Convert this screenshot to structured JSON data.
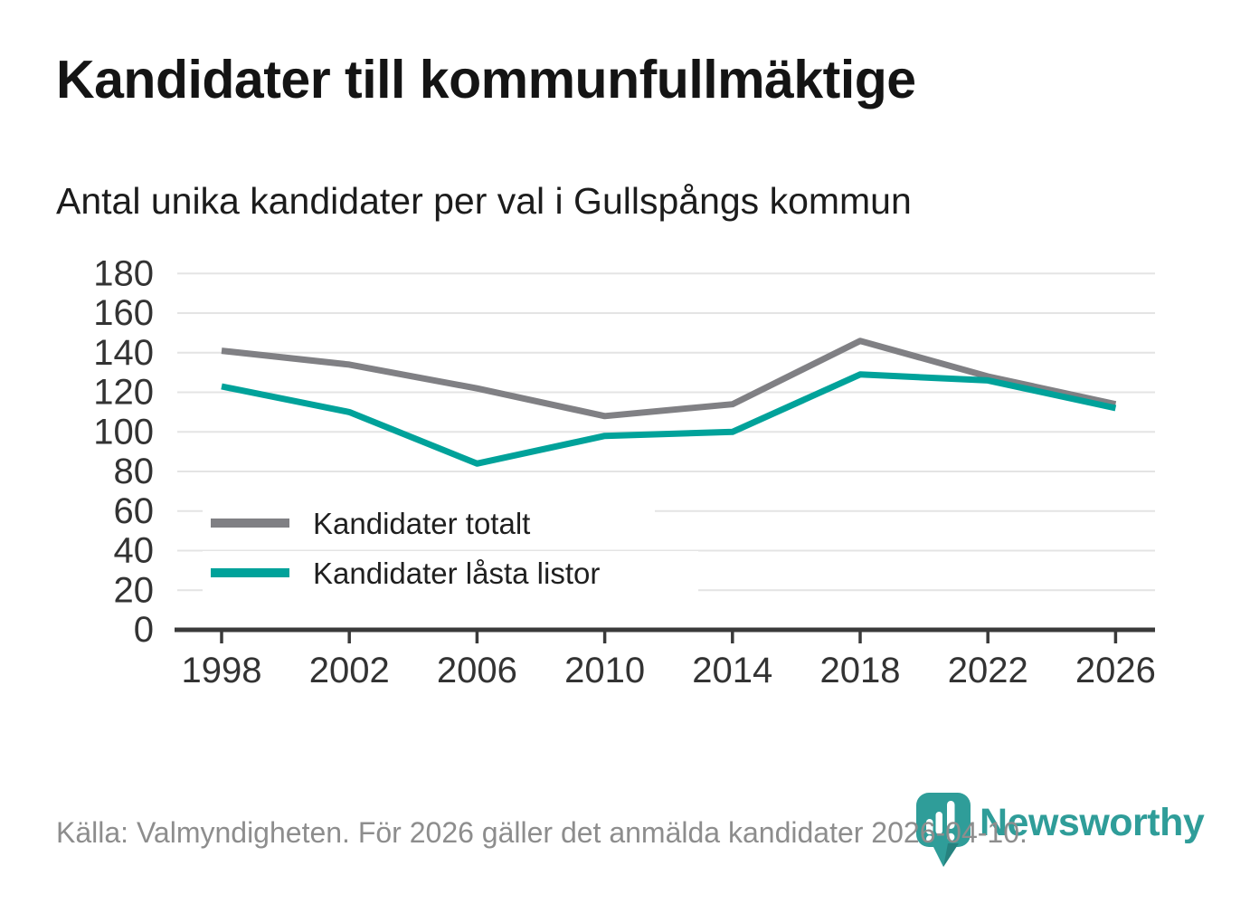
{
  "header": {
    "title": "Kandidater till kommunfullmäktige",
    "subtitle": "Antal unika kandidater per val i Gullspångs kommun"
  },
  "source_note": "Källa: Valmyndigheten. För 2026 gäller det anmälda kandidater 2026-04-10.",
  "brand": {
    "wordmark": "Newsworthy",
    "color": "#2f9d99"
  },
  "chart_data": {
    "type": "line",
    "title": "Kandidater till kommunfullmäktige",
    "subtitle": "Antal unika kandidater per val i Gullspångs kommun",
    "x": [
      1998,
      2002,
      2006,
      2010,
      2014,
      2018,
      2022,
      2026
    ],
    "series": [
      {
        "name": "Kandidater totalt",
        "color": "#808084",
        "values": [
          141,
          134,
          122,
          108,
          114,
          146,
          128,
          114
        ]
      },
      {
        "name": "Kandidater låsta listor",
        "color": "#00a29a",
        "values": [
          123,
          110,
          84,
          98,
          100,
          129,
          126,
          112
        ]
      }
    ],
    "xlabel": "",
    "ylabel": "",
    "ylim": [
      0,
      180
    ],
    "ytick_step": 20,
    "grid": "horizontal",
    "gridline_color": "#e4e4e4",
    "axis_color": "#3a3a3a",
    "tick_label_color": "#333333",
    "legend_position": "inside bottom-left",
    "legend_text_color": "#1f1f1f"
  }
}
